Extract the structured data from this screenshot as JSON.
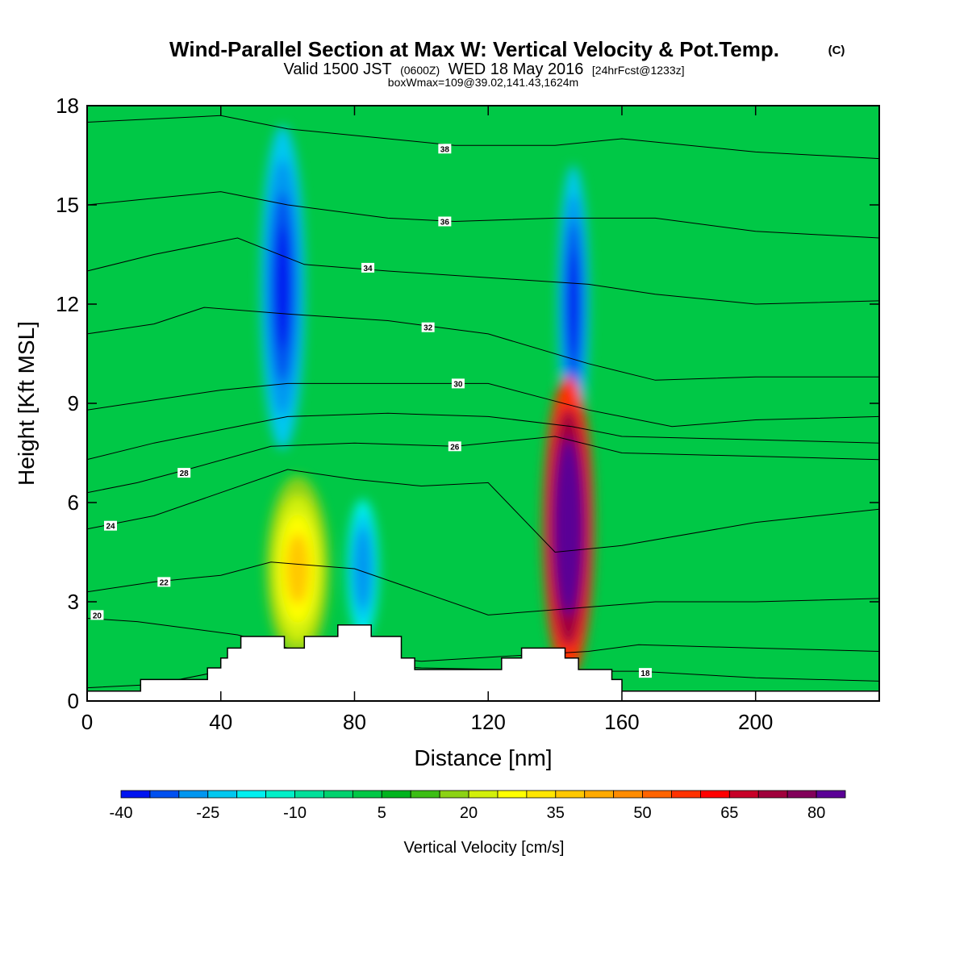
{
  "titles": {
    "main": "Wind-Parallel Section at Max W: Vertical Velocity & Pot.Temp.",
    "main_mark": "(C)",
    "valid_a": "Valid 1500 JST",
    "valid_b": "(0600Z)",
    "valid_c": "WED 18 May 2016",
    "valid_d": "[24hrFcst@1233z]",
    "box": "boxWmax=109@39.02,141.43,1624m"
  },
  "chart_data": {
    "type": "heatmap",
    "xlabel": "Distance [nm]",
    "ylabel": "Height [Kft MSL]",
    "xlim": [
      0,
      237
    ],
    "ylim": [
      0,
      18
    ],
    "x_ticks": [
      "0",
      "40",
      "80",
      "120",
      "160",
      "200"
    ],
    "x_tick_values": [
      0,
      40,
      80,
      120,
      160,
      200
    ],
    "y_ticks": [
      "0",
      "3",
      "6",
      "9",
      "12",
      "15",
      "18"
    ],
    "y_tick_values": [
      0,
      3,
      6,
      9,
      12,
      15,
      18
    ],
    "colorbar": {
      "label": "Vertical Velocity [cm/s]",
      "tick_labels": [
        "-40",
        "-25",
        "-10",
        "5",
        "20",
        "35",
        "50",
        "65",
        "80"
      ],
      "tick_values": [
        -40,
        -25,
        -10,
        5,
        20,
        35,
        50,
        65,
        80
      ],
      "levels": [
        -40,
        -35,
        -30,
        -25,
        -20,
        -15,
        -10,
        -5,
        0,
        5,
        10,
        15,
        20,
        25,
        30,
        35,
        40,
        45,
        50,
        55,
        60,
        65,
        70,
        75,
        80,
        85
      ],
      "colors": [
        "#0014f0",
        "#0050f0",
        "#0096f0",
        "#00c8f0",
        "#00f0f0",
        "#00f0c8",
        "#00e09a",
        "#00d26e",
        "#00c846",
        "#00b41e",
        "#3cbe14",
        "#8cd214",
        "#d2f00a",
        "#ffff00",
        "#ffe600",
        "#ffc800",
        "#ffaa00",
        "#ff8c00",
        "#ff6400",
        "#ff3200",
        "#ff0000",
        "#c80028",
        "#a0003c",
        "#82005a",
        "#5a0096"
      ]
    },
    "velocity_features": [
      {
        "kind": "downdraft",
        "x_range_nm": [
          55,
          62
        ],
        "y_range_kft": [
          9,
          16
        ],
        "peak_cm_s": -40
      },
      {
        "kind": "updraft",
        "x_range_nm": [
          58,
          68
        ],
        "y_range_kft": [
          2,
          6
        ],
        "peak_cm_s": 35
      },
      {
        "kind": "downdraft",
        "x_range_nm": [
          80,
          85
        ],
        "y_range_kft": [
          2.5,
          5.5
        ],
        "peak_cm_s": -30
      },
      {
        "kind": "downdraft",
        "x_range_nm": [
          143,
          148
        ],
        "y_range_kft": [
          9,
          15
        ],
        "peak_cm_s": -40
      },
      {
        "kind": "updraft",
        "x_range_nm": [
          140,
          148
        ],
        "y_range_kft": [
          2,
          8.5
        ],
        "peak_cm_s": 109
      }
    ],
    "terrain_kft": [
      {
        "x": 0,
        "y": 0.3
      },
      {
        "x": 16,
        "y": 0.3
      },
      {
        "x": 16,
        "y": 0.65
      },
      {
        "x": 36,
        "y": 0.65
      },
      {
        "x": 36,
        "y": 1.0
      },
      {
        "x": 40,
        "y": 1.0
      },
      {
        "x": 40,
        "y": 1.3
      },
      {
        "x": 42,
        "y": 1.3
      },
      {
        "x": 42,
        "y": 1.6
      },
      {
        "x": 46,
        "y": 1.6
      },
      {
        "x": 46,
        "y": 1.95
      },
      {
        "x": 59,
        "y": 1.95
      },
      {
        "x": 59,
        "y": 1.6
      },
      {
        "x": 65,
        "y": 1.6
      },
      {
        "x": 65,
        "y": 1.95
      },
      {
        "x": 75,
        "y": 1.95
      },
      {
        "x": 75,
        "y": 2.3
      },
      {
        "x": 85,
        "y": 2.3
      },
      {
        "x": 85,
        "y": 1.95
      },
      {
        "x": 94,
        "y": 1.95
      },
      {
        "x": 94,
        "y": 1.3
      },
      {
        "x": 98,
        "y": 1.3
      },
      {
        "x": 98,
        "y": 0.95
      },
      {
        "x": 124,
        "y": 0.95
      },
      {
        "x": 124,
        "y": 1.3
      },
      {
        "x": 130,
        "y": 1.3
      },
      {
        "x": 130,
        "y": 1.6
      },
      {
        "x": 143,
        "y": 1.6
      },
      {
        "x": 143,
        "y": 1.3
      },
      {
        "x": 147,
        "y": 1.3
      },
      {
        "x": 147,
        "y": 0.95
      },
      {
        "x": 157,
        "y": 0.95
      },
      {
        "x": 157,
        "y": 0.65
      },
      {
        "x": 160,
        "y": 0.65
      },
      {
        "x": 160,
        "y": 0.3
      },
      {
        "x": 237,
        "y": 0.3
      }
    ],
    "theta_contours": [
      {
        "label": "18",
        "points": [
          [
            0,
            0.4
          ],
          [
            20,
            0.5
          ],
          [
            40,
            0.9
          ],
          [
            60,
            1.2
          ],
          [
            100,
            1.0
          ],
          [
            150,
            0.9
          ],
          [
            165,
            0.9
          ],
          [
            200,
            0.7
          ],
          [
            237,
            0.6
          ]
        ],
        "label_at": [
          167,
          0.85
        ]
      },
      {
        "label": "20",
        "points": [
          [
            0,
            2.5
          ],
          [
            15,
            2.4
          ],
          [
            30,
            2.2
          ],
          [
            45,
            2.0
          ],
          [
            60,
            1.6
          ],
          [
            100,
            1.2
          ],
          [
            150,
            1.5
          ],
          [
            165,
            1.7
          ],
          [
            200,
            1.6
          ],
          [
            237,
            1.5
          ]
        ],
        "label_at": [
          3,
          2.6
        ]
      },
      {
        "label": "22",
        "points": [
          [
            0,
            3.3
          ],
          [
            20,
            3.6
          ],
          [
            40,
            3.8
          ],
          [
            55,
            4.2
          ],
          [
            80,
            4.0
          ],
          [
            120,
            2.6
          ],
          [
            145,
            2.8
          ],
          [
            170,
            3.0
          ],
          [
            200,
            3.0
          ],
          [
            237,
            3.1
          ]
        ],
        "label_at": [
          23,
          3.6
        ]
      },
      {
        "label": "24",
        "points": [
          [
            0,
            5.2
          ],
          [
            20,
            5.6
          ],
          [
            40,
            6.3
          ],
          [
            60,
            7.0
          ],
          [
            80,
            6.7
          ],
          [
            100,
            6.5
          ],
          [
            120,
            6.6
          ],
          [
            140,
            4.5
          ],
          [
            160,
            4.7
          ],
          [
            200,
            5.4
          ],
          [
            237,
            5.8
          ]
        ],
        "label_at": [
          7,
          5.3
        ]
      },
      {
        "label": "26",
        "points": [
          [
            0,
            6.3
          ],
          [
            15,
            6.6
          ],
          [
            30,
            7.0
          ],
          [
            55,
            7.7
          ],
          [
            80,
            7.8
          ],
          [
            110,
            7.7
          ],
          [
            140,
            8.0
          ],
          [
            160,
            7.5
          ],
          [
            200,
            7.4
          ],
          [
            237,
            7.3
          ]
        ],
        "label_at": [
          110,
          7.7
        ]
      },
      {
        "label": "28",
        "points": [
          [
            0,
            7.3
          ],
          [
            20,
            7.8
          ],
          [
            40,
            8.2
          ],
          [
            60,
            8.6
          ],
          [
            90,
            8.7
          ],
          [
            120,
            8.6
          ],
          [
            145,
            8.3
          ],
          [
            160,
            8.0
          ],
          [
            200,
            7.9
          ],
          [
            237,
            7.8
          ]
        ],
        "label_at": [
          29,
          6.9
        ]
      },
      {
        "label": "30",
        "points": [
          [
            0,
            8.8
          ],
          [
            20,
            9.1
          ],
          [
            40,
            9.4
          ],
          [
            60,
            9.6
          ],
          [
            90,
            9.6
          ],
          [
            120,
            9.6
          ],
          [
            150,
            8.8
          ],
          [
            175,
            8.3
          ],
          [
            200,
            8.5
          ],
          [
            237,
            8.6
          ]
        ],
        "label_at": [
          111,
          9.6
        ]
      },
      {
        "label": "32",
        "points": [
          [
            0,
            11.1
          ],
          [
            20,
            11.4
          ],
          [
            35,
            11.9
          ],
          [
            60,
            11.7
          ],
          [
            90,
            11.5
          ],
          [
            120,
            11.1
          ],
          [
            150,
            10.2
          ],
          [
            170,
            9.7
          ],
          [
            200,
            9.8
          ],
          [
            237,
            9.8
          ]
        ],
        "label_at": [
          102,
          11.3
        ]
      },
      {
        "label": "34",
        "points": [
          [
            0,
            13.0
          ],
          [
            20,
            13.5
          ],
          [
            45,
            14.0
          ],
          [
            65,
            13.2
          ],
          [
            90,
            13.0
          ],
          [
            120,
            12.8
          ],
          [
            150,
            12.6
          ],
          [
            170,
            12.3
          ],
          [
            200,
            12.0
          ],
          [
            237,
            12.1
          ]
        ],
        "label_at": [
          84,
          13.1
        ]
      },
      {
        "label": "36",
        "points": [
          [
            0,
            15.0
          ],
          [
            20,
            15.2
          ],
          [
            40,
            15.4
          ],
          [
            60,
            15.0
          ],
          [
            90,
            14.6
          ],
          [
            110,
            14.5
          ],
          [
            140,
            14.6
          ],
          [
            170,
            14.6
          ],
          [
            200,
            14.2
          ],
          [
            237,
            14.0
          ]
        ],
        "label_at": [
          107,
          14.5
        ]
      },
      {
        "label": "38",
        "points": [
          [
            0,
            17.5
          ],
          [
            20,
            17.6
          ],
          [
            40,
            17.7
          ],
          [
            60,
            17.3
          ],
          [
            90,
            17.0
          ],
          [
            110,
            16.8
          ],
          [
            140,
            16.8
          ],
          [
            160,
            17.0
          ],
          [
            200,
            16.6
          ],
          [
            237,
            16.4
          ]
        ],
        "label_at": [
          107,
          16.7
        ]
      }
    ],
    "grid": false
  }
}
